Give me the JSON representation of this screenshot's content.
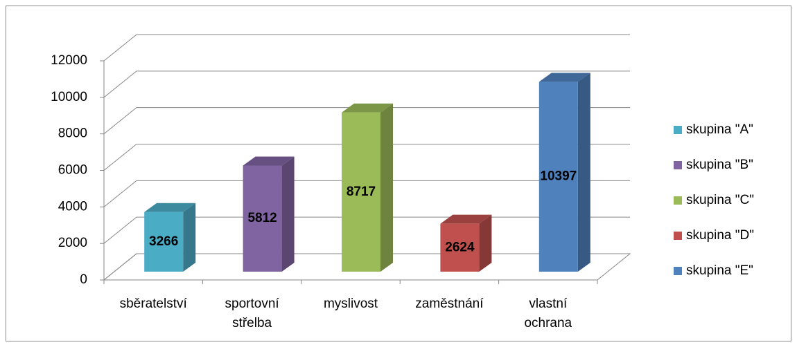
{
  "chart_data": {
    "type": "bar3d",
    "categories": [
      "sběratelství",
      "sportovní střelba",
      "myslivost",
      "zaměstnání",
      "vlastní ochrana"
    ],
    "series": [
      {
        "name": "skupina \"A\"",
        "color": "#4bacc6",
        "values": [
          3266,
          null,
          null,
          null,
          null
        ]
      },
      {
        "name": "skupina \"B\"",
        "color": "#8064a2",
        "values": [
          null,
          5812,
          null,
          null,
          null
        ]
      },
      {
        "name": "skupina \"C\"",
        "color": "#9bbb59",
        "values": [
          null,
          null,
          8717,
          null,
          null
        ]
      },
      {
        "name": "skupina \"D\"",
        "color": "#c0504d",
        "values": [
          null,
          null,
          null,
          2624,
          null
        ]
      },
      {
        "name": "skupina \"E\"",
        "color": "#4f81bd",
        "values": [
          null,
          null,
          null,
          null,
          10397
        ]
      }
    ],
    "ylim": [
      0,
      12000
    ],
    "yticks": [
      0,
      2000,
      4000,
      6000,
      8000,
      10000,
      12000
    ],
    "grid": true,
    "legend": "right"
  }
}
